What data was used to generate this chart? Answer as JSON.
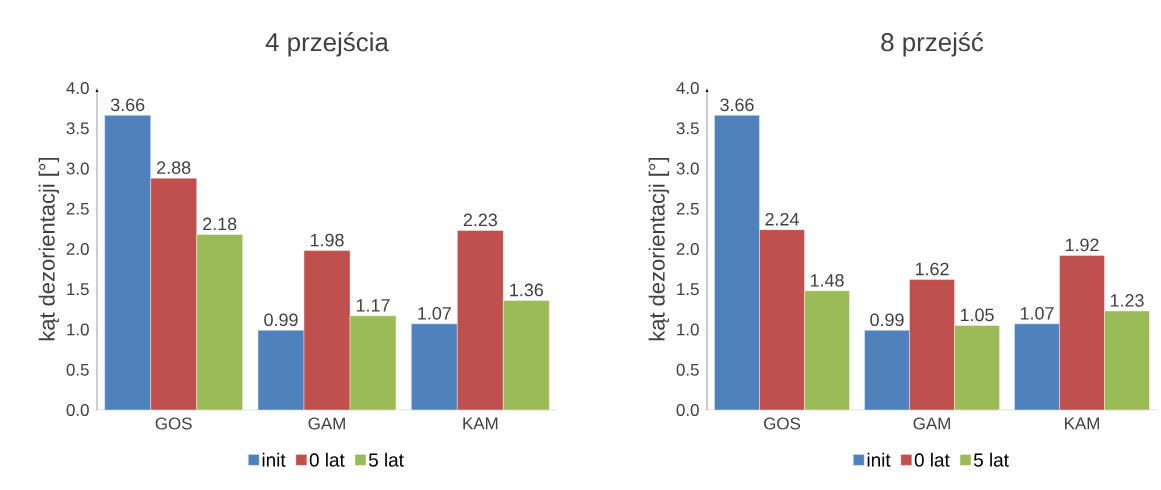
{
  "chart_data": [
    {
      "type": "bar",
      "title": "4 przejścia",
      "ylabel": "kąt dezorientacji [°]",
      "categories": [
        "GOS",
        "GAM",
        "KAM"
      ],
      "series": [
        {
          "name": "init",
          "color": "#4f81bd",
          "values": [
            3.66,
            0.99,
            1.07
          ]
        },
        {
          "name": "0 lat",
          "color": "#c0504d",
          "values": [
            2.88,
            1.98,
            2.23
          ]
        },
        {
          "name": "5 lat",
          "color": "#9bbb59",
          "values": [
            2.18,
            1.17,
            1.36
          ]
        }
      ],
      "ylim": [
        0,
        4
      ],
      "yticks": [
        {
          "value": 0,
          "label": "0.0"
        },
        {
          "value": 0.5,
          "label": "0.5"
        },
        {
          "value": 1,
          "label": "1.0"
        },
        {
          "value": 1.5,
          "label": "1.5"
        },
        {
          "value": 2,
          "label": "2.0"
        },
        {
          "value": 2.5,
          "label": "2.5"
        },
        {
          "value": 3,
          "label": "3.0"
        },
        {
          "value": 3.5,
          "label": "3.5"
        },
        {
          "value": 4,
          "label": "4.0"
        }
      ],
      "data_labels": true,
      "legend": "bottom"
    },
    {
      "type": "bar",
      "title": "8 przejść",
      "ylabel": "kąt dezorientacji [°]",
      "categories": [
        "GOS",
        "GAM",
        "KAM"
      ],
      "series": [
        {
          "name": "init",
          "color": "#4f81bd",
          "values": [
            3.66,
            0.99,
            1.07
          ]
        },
        {
          "name": "0 lat",
          "color": "#c0504d",
          "values": [
            2.24,
            1.62,
            1.92
          ]
        },
        {
          "name": "5 lat",
          "color": "#9bbb59",
          "values": [
            1.48,
            1.05,
            1.23
          ]
        }
      ],
      "ylim": [
        0,
        4
      ],
      "yticks": [
        {
          "value": 0,
          "label": "0.0"
        },
        {
          "value": 0.5,
          "label": "0.5"
        },
        {
          "value": 1,
          "label": "1.0"
        },
        {
          "value": 1.5,
          "label": "1.5"
        },
        {
          "value": 2,
          "label": "2.0"
        },
        {
          "value": 2.5,
          "label": "2.5"
        },
        {
          "value": 3,
          "label": "3.0"
        },
        {
          "value": 3.5,
          "label": "3.5"
        },
        {
          "value": 4,
          "label": "4.0"
        }
      ],
      "data_labels": true,
      "legend": "bottom"
    }
  ]
}
